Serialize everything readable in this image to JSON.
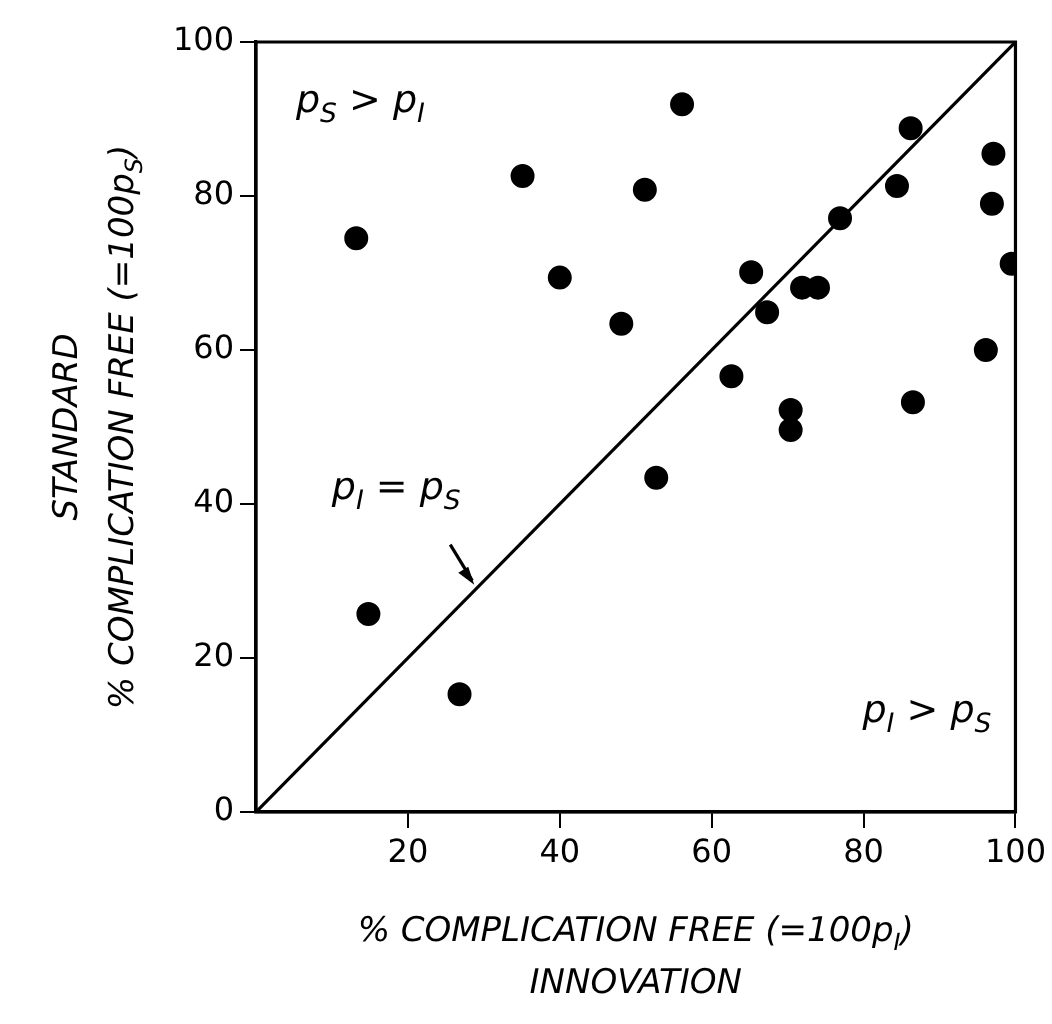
{
  "chart_data": {
    "type": "scatter",
    "xlabel": "% COMPLICATION FREE (=100p$_{I}$)\nINNOVATION",
    "ylabel": "STANDARD\n% COMPLICATION FREE (=100p$_{S}$)",
    "xlim": [
      0,
      100
    ],
    "ylim": [
      0,
      100
    ],
    "xticks": [
      20,
      40,
      60,
      80,
      100
    ],
    "yticks": [
      0,
      20,
      40,
      60,
      80,
      100
    ],
    "grid": false,
    "legend": false,
    "series": [
      {
        "type": "scatter",
        "marker": "circle",
        "color": "#000000",
        "x": [
          13.2,
          35.1,
          51.2,
          40,
          48.1,
          56.1,
          86.2,
          97.1,
          84.4,
          96.9,
          76.9,
          99.5,
          65.2,
          71.9,
          74,
          67.3,
          96.1,
          62.6,
          86.5,
          70.4,
          70.4,
          52.7,
          14.8,
          26.8
        ],
        "values": [
          74.5,
          82.6,
          80.8,
          69.4,
          63.4,
          91.9,
          88.8,
          85.5,
          81.3,
          79,
          77.1,
          71.2,
          70.1,
          68.1,
          68.1,
          64.9,
          60,
          56.6,
          53.2,
          52.2,
          49.6,
          43.4,
          25.7,
          15.3
        ]
      },
      {
        "type": "line",
        "marker": "none",
        "color": "#000000",
        "x": [
          0,
          100
        ],
        "values": [
          0,
          100
        ]
      }
    ],
    "annotations": [
      "p$_{S}$ > p$_{I}$",
      "p$_{I}$ > p$_{S}$",
      {
        "text": "p$_{I}$ = p$_{S}$",
        "x": 29,
        "y": 29
      }
    ]
  }
}
